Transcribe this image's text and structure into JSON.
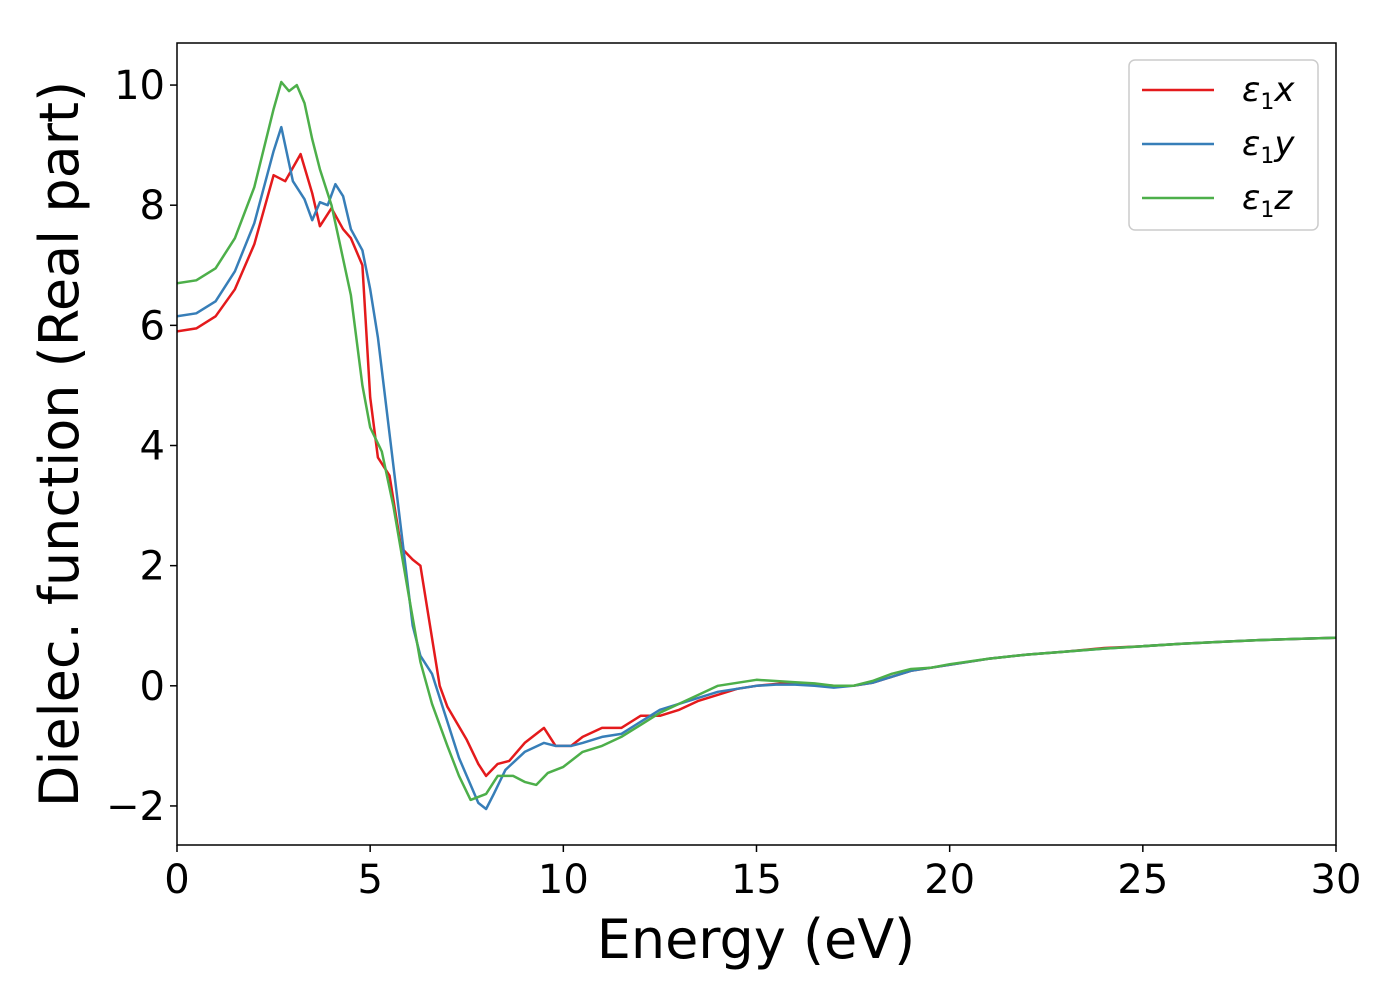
{
  "chart_data": {
    "type": "line",
    "title": "",
    "xlabel": "Energy (eV)",
    "ylabel": "Dielec. function (Real part)",
    "xlim": [
      0,
      30
    ],
    "ylim": [
      -2.65,
      10.7
    ],
    "xticks": [
      0,
      5,
      10,
      15,
      20,
      25,
      30
    ],
    "xtick_labels": [
      "0",
      "5",
      "10",
      "15",
      "20",
      "25",
      "30"
    ],
    "yticks": [
      -2,
      0,
      2,
      4,
      6,
      8,
      10
    ],
    "ytick_labels": [
      "−2",
      "0",
      "2",
      "4",
      "6",
      "8",
      "10"
    ],
    "grid": false,
    "legend_position": "top-right",
    "series": [
      {
        "name": "ε1x",
        "label_symbol": "ε",
        "label_sub": "1",
        "label_axis": "x",
        "color": "#e41a1c",
        "points": [
          [
            0,
            5.9
          ],
          [
            0.5,
            5.95
          ],
          [
            1,
            6.15
          ],
          [
            1.5,
            6.6
          ],
          [
            2,
            7.35
          ],
          [
            2.5,
            8.5
          ],
          [
            2.8,
            8.4
          ],
          [
            3.2,
            8.85
          ],
          [
            3.5,
            8.2
          ],
          [
            3.7,
            7.65
          ],
          [
            4,
            7.95
          ],
          [
            4.3,
            7.6
          ],
          [
            4.5,
            7.45
          ],
          [
            4.8,
            7.0
          ],
          [
            5.0,
            4.8
          ],
          [
            5.2,
            3.8
          ],
          [
            5.5,
            3.5
          ],
          [
            5.8,
            2.3
          ],
          [
            6.1,
            2.1
          ],
          [
            6.3,
            2.0
          ],
          [
            6.5,
            1.2
          ],
          [
            6.8,
            0
          ],
          [
            7.0,
            -0.35
          ],
          [
            7.5,
            -0.9
          ],
          [
            7.8,
            -1.3
          ],
          [
            8.0,
            -1.5
          ],
          [
            8.3,
            -1.3
          ],
          [
            8.6,
            -1.25
          ],
          [
            9.0,
            -0.95
          ],
          [
            9.5,
            -0.7
          ],
          [
            9.8,
            -1.0
          ],
          [
            10.2,
            -1.0
          ],
          [
            10.5,
            -0.85
          ],
          [
            11.0,
            -0.7
          ],
          [
            11.5,
            -0.7
          ],
          [
            12.0,
            -0.5
          ],
          [
            12.5,
            -0.5
          ],
          [
            13.0,
            -0.4
          ],
          [
            13.5,
            -0.25
          ],
          [
            14.0,
            -0.15
          ],
          [
            14.5,
            -0.05
          ],
          [
            15.0,
            0.0
          ],
          [
            15.5,
            0.03
          ],
          [
            16.0,
            0.05
          ],
          [
            16.5,
            0.02
          ],
          [
            17.0,
            0.0
          ],
          [
            17.5,
            0.0
          ],
          [
            18.0,
            0.05
          ],
          [
            18.5,
            0.15
          ],
          [
            19.0,
            0.25
          ],
          [
            19.5,
            0.3
          ],
          [
            20,
            0.35
          ],
          [
            21,
            0.45
          ],
          [
            22,
            0.52
          ],
          [
            23,
            0.57
          ],
          [
            24,
            0.63
          ],
          [
            25,
            0.66
          ],
          [
            26,
            0.7
          ],
          [
            27,
            0.73
          ],
          [
            28,
            0.76
          ],
          [
            29,
            0.78
          ],
          [
            30,
            0.8
          ]
        ]
      },
      {
        "name": "ε1y",
        "label_symbol": "ε",
        "label_sub": "1",
        "label_axis": "y",
        "color": "#377eb8",
        "points": [
          [
            0,
            6.15
          ],
          [
            0.5,
            6.2
          ],
          [
            1,
            6.4
          ],
          [
            1.5,
            6.9
          ],
          [
            2,
            7.7
          ],
          [
            2.5,
            8.9
          ],
          [
            2.7,
            9.3
          ],
          [
            3.0,
            8.4
          ],
          [
            3.3,
            8.1
          ],
          [
            3.5,
            7.75
          ],
          [
            3.7,
            8.05
          ],
          [
            3.9,
            8.0
          ],
          [
            4.1,
            8.35
          ],
          [
            4.3,
            8.15
          ],
          [
            4.5,
            7.6
          ],
          [
            4.8,
            7.25
          ],
          [
            5.0,
            6.6
          ],
          [
            5.2,
            5.8
          ],
          [
            5.5,
            4.2
          ],
          [
            5.8,
            2.6
          ],
          [
            6.1,
            1.0
          ],
          [
            6.3,
            0.5
          ],
          [
            6.6,
            0.2
          ],
          [
            7.0,
            -0.6
          ],
          [
            7.3,
            -1.2
          ],
          [
            7.6,
            -1.65
          ],
          [
            7.8,
            -1.95
          ],
          [
            8.0,
            -2.05
          ],
          [
            8.2,
            -1.8
          ],
          [
            8.5,
            -1.4
          ],
          [
            9.0,
            -1.1
          ],
          [
            9.5,
            -0.95
          ],
          [
            9.8,
            -1.0
          ],
          [
            10.2,
            -1.0
          ],
          [
            10.5,
            -0.95
          ],
          [
            11.0,
            -0.85
          ],
          [
            11.5,
            -0.8
          ],
          [
            12.0,
            -0.6
          ],
          [
            12.5,
            -0.4
          ],
          [
            13.0,
            -0.3
          ],
          [
            13.5,
            -0.2
          ],
          [
            14.0,
            -0.1
          ],
          [
            14.5,
            -0.05
          ],
          [
            15.0,
            0.0
          ],
          [
            15.5,
            0.02
          ],
          [
            16.0,
            0.02
          ],
          [
            16.5,
            0.0
          ],
          [
            17.0,
            -0.03
          ],
          [
            17.5,
            0.0
          ],
          [
            18.0,
            0.05
          ],
          [
            18.5,
            0.15
          ],
          [
            19.0,
            0.25
          ],
          [
            19.5,
            0.3
          ],
          [
            20,
            0.35
          ],
          [
            21,
            0.45
          ],
          [
            22,
            0.52
          ],
          [
            23,
            0.57
          ],
          [
            24,
            0.62
          ],
          [
            25,
            0.66
          ],
          [
            26,
            0.7
          ],
          [
            27,
            0.73
          ],
          [
            28,
            0.76
          ],
          [
            29,
            0.78
          ],
          [
            30,
            0.8
          ]
        ]
      },
      {
        "name": "ε1z",
        "label_symbol": "ε",
        "label_sub": "1",
        "label_axis": "z",
        "color": "#4daf4a",
        "points": [
          [
            0,
            6.7
          ],
          [
            0.5,
            6.75
          ],
          [
            1,
            6.95
          ],
          [
            1.5,
            7.45
          ],
          [
            2,
            8.3
          ],
          [
            2.5,
            9.6
          ],
          [
            2.7,
            10.05
          ],
          [
            2.9,
            9.9
          ],
          [
            3.1,
            10.0
          ],
          [
            3.3,
            9.7
          ],
          [
            3.5,
            9.1
          ],
          [
            3.7,
            8.6
          ],
          [
            4.0,
            8.0
          ],
          [
            4.2,
            7.4
          ],
          [
            4.5,
            6.5
          ],
          [
            4.8,
            5.0
          ],
          [
            5.0,
            4.3
          ],
          [
            5.3,
            3.9
          ],
          [
            5.6,
            3.0
          ],
          [
            6.0,
            1.5
          ],
          [
            6.3,
            0.4
          ],
          [
            6.6,
            -0.3
          ],
          [
            7.0,
            -1.0
          ],
          [
            7.3,
            -1.5
          ],
          [
            7.6,
            -1.9
          ],
          [
            8.0,
            -1.8
          ],
          [
            8.3,
            -1.5
          ],
          [
            8.7,
            -1.5
          ],
          [
            9.0,
            -1.6
          ],
          [
            9.3,
            -1.65
          ],
          [
            9.6,
            -1.45
          ],
          [
            10.0,
            -1.35
          ],
          [
            10.5,
            -1.1
          ],
          [
            11.0,
            -1.0
          ],
          [
            11.5,
            -0.85
          ],
          [
            12.0,
            -0.65
          ],
          [
            12.5,
            -0.45
          ],
          [
            13.0,
            -0.3
          ],
          [
            13.5,
            -0.15
          ],
          [
            14.0,
            0.0
          ],
          [
            14.5,
            0.05
          ],
          [
            15.0,
            0.1
          ],
          [
            15.5,
            0.08
          ],
          [
            16.0,
            0.06
          ],
          [
            16.5,
            0.04
          ],
          [
            17.0,
            0.0
          ],
          [
            17.5,
            0.0
          ],
          [
            18.0,
            0.08
          ],
          [
            18.5,
            0.2
          ],
          [
            19.0,
            0.28
          ],
          [
            19.5,
            0.3
          ],
          [
            20,
            0.36
          ],
          [
            21,
            0.45
          ],
          [
            22,
            0.52
          ],
          [
            23,
            0.57
          ],
          [
            24,
            0.62
          ],
          [
            25,
            0.66
          ],
          [
            26,
            0.7
          ],
          [
            27,
            0.73
          ],
          [
            28,
            0.76
          ],
          [
            29,
            0.78
          ],
          [
            30,
            0.8
          ]
        ]
      }
    ]
  }
}
